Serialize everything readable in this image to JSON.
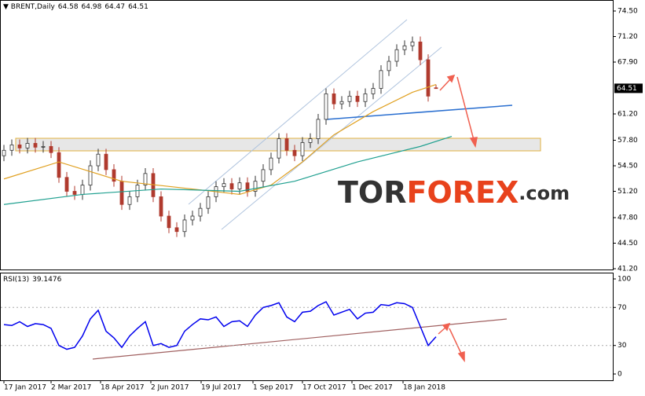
{
  "chart_data": {
    "type": "candlestick",
    "title": "BRENT,Daily",
    "xlim": [
      -0.5,
      77.5
    ],
    "xticks": [
      {
        "value": 0,
        "label": "17 Jan 2017"
      },
      {
        "value": 6,
        "label": "2 Mar 2017"
      },
      {
        "value": 12.3,
        "label": "18 Apr 2017"
      },
      {
        "value": 18.7,
        "label": "2 Jun 2017"
      },
      {
        "value": 25.1,
        "label": "19 Jul 2017"
      },
      {
        "value": 31.7,
        "label": "1 Sep 2017"
      },
      {
        "value": 38,
        "label": "17 Oct 2017"
      },
      {
        "value": 44.3,
        "label": "1 Dec 2017"
      },
      {
        "value": 50.8,
        "label": "18 Jan 2018"
      }
    ],
    "ylim": [
      41.2,
      74.5
    ],
    "yticks": [
      {
        "value": 74.5,
        "label": "74.50"
      },
      {
        "value": 71.2,
        "label": "71.20"
      },
      {
        "value": 67.9,
        "label": "67.90"
      },
      {
        "value": 61.2,
        "label": "61.20"
      },
      {
        "value": 57.8,
        "label": "57.80"
      },
      {
        "value": 54.5,
        "label": "54.50"
      },
      {
        "value": 51.2,
        "label": "51.20"
      },
      {
        "value": 47.8,
        "label": "47.80"
      },
      {
        "value": 44.5,
        "label": "44.50"
      },
      {
        "value": 41.2,
        "label": "41.20"
      }
    ],
    "up_color": "#333333",
    "down_color": "#b03a2e",
    "open": [
      55.8,
      56.5,
      57.2,
      56.8,
      57.4,
      56.9,
      57.0,
      56.2,
      53.0,
      51.2,
      50.8,
      52.0,
      54.5,
      56.0,
      54.0,
      52.5,
      49.5,
      50.5,
      52.0,
      53.5,
      50.5,
      48.0,
      46.5,
      46.0,
      47.5,
      48.0,
      49.0,
      50.5,
      51.8,
      52.2,
      51.5,
      52.3,
      51.2,
      52.5,
      54.0,
      55.5,
      58.0,
      56.5,
      55.8,
      57.5,
      58.0,
      60.5,
      63.8,
      62.5,
      62.8,
      63.5,
      62.8,
      63.8,
      64.5,
      66.8,
      68.0,
      69.5,
      70.0,
      70.5,
      68.2,
      64.58
    ],
    "high": [
      57.2,
      57.9,
      57.9,
      58.1,
      58.1,
      57.7,
      57.7,
      56.9,
      53.7,
      51.9,
      52.7,
      55.2,
      56.7,
      56.7,
      54.7,
      53.2,
      51.2,
      52.7,
      54.2,
      54.2,
      51.2,
      48.7,
      47.2,
      48.2,
      48.7,
      49.7,
      51.2,
      52.5,
      52.9,
      52.9,
      53.0,
      53.0,
      53.2,
      54.7,
      56.2,
      58.7,
      58.7,
      57.2,
      58.2,
      58.7,
      61.2,
      64.5,
      64.5,
      63.5,
      64.2,
      64.2,
      64.5,
      65.2,
      67.5,
      68.7,
      70.2,
      70.7,
      71.2,
      71.2,
      68.9,
      64.98
    ],
    "low": [
      55.1,
      55.8,
      56.1,
      56.1,
      56.2,
      56.2,
      55.5,
      52.3,
      50.5,
      50.1,
      50.1,
      51.3,
      53.8,
      53.3,
      51.8,
      48.8,
      48.8,
      49.8,
      51.3,
      49.8,
      47.3,
      45.8,
      45.3,
      45.3,
      46.8,
      47.3,
      48.3,
      49.8,
      51.1,
      50.8,
      50.8,
      50.5,
      50.5,
      51.8,
      53.3,
      54.8,
      55.8,
      55.1,
      55.1,
      56.8,
      57.3,
      59.8,
      61.8,
      61.8,
      62.1,
      62.1,
      62.1,
      63.1,
      63.8,
      66.1,
      67.3,
      68.8,
      69.3,
      67.5,
      62.8,
      64.47
    ],
    "close": [
      56.5,
      57.2,
      56.8,
      57.4,
      56.9,
      57.0,
      56.2,
      53.0,
      51.2,
      50.8,
      52.0,
      54.5,
      56.0,
      54.0,
      52.5,
      49.5,
      50.5,
      52.0,
      53.5,
      50.5,
      48.0,
      46.5,
      46.0,
      47.5,
      48.0,
      49.0,
      50.5,
      51.8,
      52.2,
      51.5,
      52.3,
      51.2,
      52.5,
      54.0,
      55.5,
      58.0,
      56.5,
      55.8,
      57.5,
      58.0,
      60.5,
      63.8,
      62.5,
      62.8,
      63.5,
      62.8,
      63.8,
      64.5,
      66.8,
      68.0,
      69.5,
      70.0,
      70.5,
      68.2,
      63.5,
      64.51
    ],
    "moving_averages": [
      {
        "color": "#e0a020",
        "x": [
          0,
          7,
          15,
          24,
          30,
          34,
          38,
          42,
          47,
          52,
          55
        ],
        "values": [
          52.8,
          55.0,
          52.5,
          51.5,
          50.8,
          52.0,
          55.0,
          58.5,
          61.5,
          64.0,
          65.0
        ]
      },
      {
        "color": "#20a090",
        "x": [
          0,
          10,
          20,
          30,
          37,
          45,
          53,
          57
        ],
        "values": [
          49.5,
          50.8,
          51.5,
          51.2,
          52.5,
          55.0,
          57.0,
          58.3
        ]
      }
    ],
    "rsi": {
      "label": "RSI(13)",
      "color": "#0000ee",
      "ylim": [
        0,
        100
      ],
      "yticks": [
        100,
        70,
        30,
        0
      ],
      "values": [
        52,
        51,
        55,
        50,
        53,
        52,
        48,
        30,
        26,
        28,
        40,
        58,
        67,
        45,
        38,
        28,
        40,
        48,
        55,
        30,
        32,
        28,
        30,
        45,
        52,
        58,
        57,
        60,
        50,
        55,
        56,
        50,
        62,
        70,
        72,
        75,
        60,
        55,
        65,
        66,
        72,
        76,
        62,
        65,
        68,
        58,
        64,
        65,
        73,
        72,
        75,
        74,
        70,
        50,
        30,
        39.1476
      ]
    },
    "logo": [
      "TOR",
      "FOREX",
      ".com"
    ]
  }
}
